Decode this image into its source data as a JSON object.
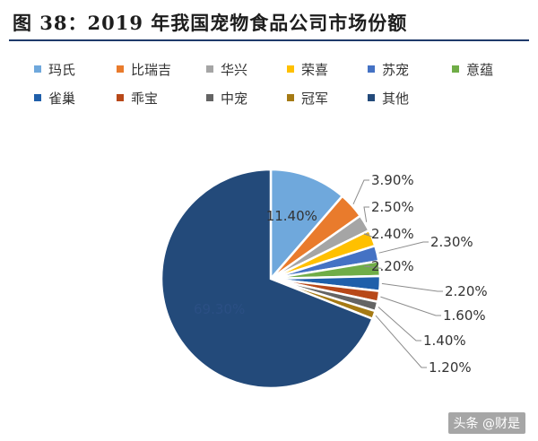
{
  "title": "图 38：2019 年我国宠物食品公司市场份额",
  "watermark": "头条 @财是",
  "chart_data": {
    "type": "pie",
    "title": "",
    "labels": [
      "玛氏",
      "比瑞吉",
      "华兴",
      "荣喜",
      "苏宠",
      "意蕴",
      "雀巢",
      "乖宝",
      "中宠",
      "冠军",
      "其他"
    ],
    "values": [
      11.4,
      3.9,
      2.5,
      2.4,
      2.3,
      2.2,
      2.2,
      1.6,
      1.4,
      1.2,
      69.3
    ],
    "value_labels": [
      "11.40%",
      "3.90%",
      "2.50%",
      "2.40%",
      "2.30%",
      "2.20%",
      "2.20%",
      "1.60%",
      "1.40%",
      "1.20%",
      "69.30%"
    ],
    "colors": [
      "#6fa8dc",
      "#e97b2c",
      "#a5a5a5",
      "#ffc000",
      "#4472c4",
      "#70ad47",
      "#1f5faa",
      "#b84818",
      "#646464",
      "#a57a14",
      "#234a7a"
    ],
    "legend_position": "top"
  }
}
